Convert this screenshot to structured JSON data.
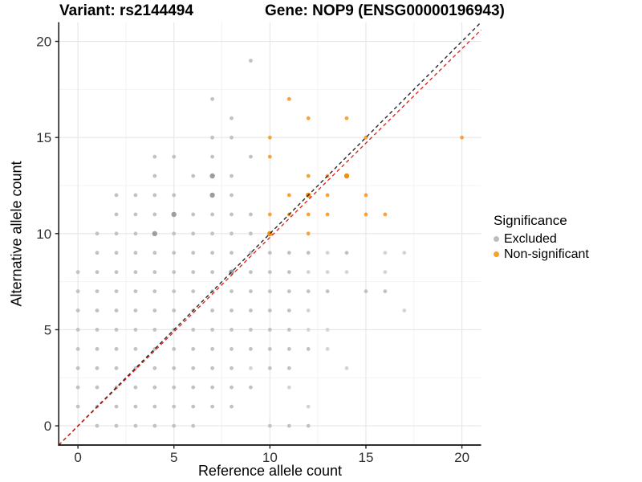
{
  "header": {
    "title_left": "Variant: rs2144494",
    "title_right": "Gene: NOP9 (ENSG00000196943)"
  },
  "chart_data": {
    "type": "scatter",
    "xlabel": "Reference allele count",
    "ylabel": "Alternative allele count",
    "xlim": [
      -1,
      21
    ],
    "ylim": [
      -1,
      21
    ],
    "x_ticks": [
      0,
      5,
      10,
      15,
      20
    ],
    "y_ticks": [
      0,
      5,
      10,
      15,
      20
    ],
    "minor_ticks": [
      2.5,
      7.5,
      12.5,
      17.5
    ],
    "grid": true,
    "major_grid_color": "#e6e6e6",
    "minor_grid_color": "#f2f2f2",
    "axis_color": "#111111",
    "tick_label_color": "#303030",
    "legend": {
      "title": "Significance",
      "position": "right",
      "items": [
        {
          "label": "Excluded",
          "color": "#BDBDBD"
        },
        {
          "label": "Non-significant",
          "color": "#F9A02A"
        }
      ]
    },
    "series": [
      {
        "name": "Excluded",
        "shade_colors": {
          "0": "#C2C2C2",
          "1": "#9D9D9D",
          "2": "#D4D4D4"
        },
        "points": [
          [
            9,
            19,
            0
          ],
          [
            7,
            17,
            0
          ],
          [
            8,
            16,
            0
          ],
          [
            7,
            15,
            0
          ],
          [
            8,
            15,
            0
          ],
          [
            4,
            14,
            0
          ],
          [
            5,
            14,
            0
          ],
          [
            7,
            14,
            0
          ],
          [
            9,
            14,
            0
          ],
          [
            4,
            13,
            0
          ],
          [
            6,
            13,
            0
          ],
          [
            7,
            13,
            1
          ],
          [
            8,
            13,
            0
          ],
          [
            2,
            12,
            0
          ],
          [
            3,
            12,
            0
          ],
          [
            4,
            12,
            0
          ],
          [
            5,
            12,
            0
          ],
          [
            7,
            12,
            1
          ],
          [
            8,
            12,
            0
          ],
          [
            2,
            11,
            0
          ],
          [
            3,
            11,
            0
          ],
          [
            4,
            11,
            0
          ],
          [
            5,
            11,
            1
          ],
          [
            6,
            11,
            0
          ],
          [
            7,
            11,
            0
          ],
          [
            8,
            11,
            0
          ],
          [
            9,
            11,
            0
          ],
          [
            1,
            10,
            0
          ],
          [
            2,
            10,
            0
          ],
          [
            3,
            10,
            0
          ],
          [
            4,
            10,
            1
          ],
          [
            5,
            10,
            0
          ],
          [
            6,
            10,
            0
          ],
          [
            7,
            10,
            0
          ],
          [
            8,
            10,
            0
          ],
          [
            9,
            10,
            0
          ],
          [
            1,
            9,
            0
          ],
          [
            2,
            9,
            0
          ],
          [
            3,
            9,
            0
          ],
          [
            4,
            9,
            0
          ],
          [
            5,
            9,
            0
          ],
          [
            6,
            9,
            0
          ],
          [
            7,
            9,
            0
          ],
          [
            8,
            9,
            0
          ],
          [
            9,
            9,
            0
          ],
          [
            10,
            9,
            0
          ],
          [
            11,
            9,
            0
          ],
          [
            12,
            9,
            0
          ],
          [
            13,
            9,
            2
          ],
          [
            14,
            9,
            0
          ],
          [
            16,
            9,
            2
          ],
          [
            17,
            9,
            2
          ],
          [
            0,
            8,
            0
          ],
          [
            1,
            8,
            0
          ],
          [
            2,
            8,
            0
          ],
          [
            3,
            8,
            0
          ],
          [
            4,
            8,
            0
          ],
          [
            5,
            8,
            0
          ],
          [
            6,
            8,
            0
          ],
          [
            7,
            8,
            0
          ],
          [
            8,
            8,
            1
          ],
          [
            9,
            8,
            0
          ],
          [
            10,
            8,
            0
          ],
          [
            11,
            8,
            0
          ],
          [
            12,
            8,
            2
          ],
          [
            13,
            8,
            2
          ],
          [
            14,
            8,
            2
          ],
          [
            16,
            8,
            2
          ],
          [
            0,
            7,
            0
          ],
          [
            1,
            7,
            0
          ],
          [
            2,
            7,
            0
          ],
          [
            3,
            7,
            0
          ],
          [
            4,
            7,
            0
          ],
          [
            5,
            7,
            0
          ],
          [
            6,
            7,
            0
          ],
          [
            7,
            7,
            0
          ],
          [
            8,
            7,
            0
          ],
          [
            9,
            7,
            0
          ],
          [
            10,
            7,
            0
          ],
          [
            11,
            7,
            0
          ],
          [
            12,
            7,
            0
          ],
          [
            13,
            7,
            0
          ],
          [
            15,
            7,
            0
          ],
          [
            16,
            7,
            0
          ],
          [
            0,
            6,
            0
          ],
          [
            1,
            6,
            0
          ],
          [
            2,
            6,
            0
          ],
          [
            3,
            6,
            0
          ],
          [
            4,
            6,
            0
          ],
          [
            5,
            6,
            0
          ],
          [
            6,
            6,
            0
          ],
          [
            7,
            6,
            0
          ],
          [
            8,
            6,
            0
          ],
          [
            9,
            6,
            0
          ],
          [
            10,
            6,
            0
          ],
          [
            11,
            6,
            0
          ],
          [
            12,
            6,
            2
          ],
          [
            17,
            6,
            2
          ],
          [
            0,
            5,
            0
          ],
          [
            1,
            5,
            0
          ],
          [
            2,
            5,
            0
          ],
          [
            3,
            5,
            0
          ],
          [
            4,
            5,
            0
          ],
          [
            5,
            5,
            0
          ],
          [
            6,
            5,
            0
          ],
          [
            7,
            5,
            0
          ],
          [
            8,
            5,
            0
          ],
          [
            9,
            5,
            0
          ],
          [
            10,
            5,
            0
          ],
          [
            11,
            5,
            0
          ],
          [
            12,
            5,
            2
          ],
          [
            13,
            5,
            2
          ],
          [
            0,
            4,
            0
          ],
          [
            1,
            4,
            0
          ],
          [
            2,
            4,
            0
          ],
          [
            3,
            4,
            0
          ],
          [
            4,
            4,
            0
          ],
          [
            5,
            4,
            0
          ],
          [
            6,
            4,
            0
          ],
          [
            7,
            4,
            0
          ],
          [
            8,
            4,
            0
          ],
          [
            9,
            4,
            0
          ],
          [
            10,
            4,
            0
          ],
          [
            11,
            4,
            0
          ],
          [
            12,
            4,
            0
          ],
          [
            13,
            4,
            2
          ],
          [
            0,
            3,
            0
          ],
          [
            1,
            3,
            0
          ],
          [
            2,
            3,
            0
          ],
          [
            3,
            3,
            0
          ],
          [
            4,
            3,
            0
          ],
          [
            5,
            3,
            0
          ],
          [
            6,
            3,
            0
          ],
          [
            7,
            3,
            0
          ],
          [
            8,
            3,
            0
          ],
          [
            9,
            3,
            2
          ],
          [
            10,
            3,
            0
          ],
          [
            11,
            3,
            0
          ],
          [
            14,
            3,
            2
          ],
          [
            0,
            2,
            0
          ],
          [
            1,
            2,
            0
          ],
          [
            2,
            2,
            0
          ],
          [
            3,
            2,
            0
          ],
          [
            4,
            2,
            0
          ],
          [
            5,
            2,
            0
          ],
          [
            6,
            2,
            0
          ],
          [
            7,
            2,
            0
          ],
          [
            8,
            2,
            0
          ],
          [
            9,
            2,
            0
          ],
          [
            11,
            2,
            2
          ],
          [
            0,
            1,
            0
          ],
          [
            1,
            1,
            0
          ],
          [
            2,
            1,
            0
          ],
          [
            3,
            1,
            0
          ],
          [
            4,
            1,
            0
          ],
          [
            5,
            1,
            0
          ],
          [
            6,
            1,
            0
          ],
          [
            7,
            1,
            0
          ],
          [
            8,
            1,
            0
          ],
          [
            12,
            1,
            2
          ],
          [
            1,
            0,
            0
          ],
          [
            2,
            0,
            0
          ],
          [
            3,
            0,
            0
          ],
          [
            4,
            0,
            0
          ],
          [
            5,
            0,
            0
          ],
          [
            6,
            0,
            0
          ],
          [
            10,
            0,
            0
          ],
          [
            11,
            0,
            0
          ],
          [
            12,
            0,
            0
          ]
        ]
      },
      {
        "name": "Non-significant",
        "shade_colors": {
          "0": "#F9A13A",
          "1": "#EE8E12",
          "2": "#F9A13A"
        },
        "points": [
          [
            11,
            17,
            0
          ],
          [
            12,
            16,
            0
          ],
          [
            14,
            16,
            0
          ],
          [
            10,
            15,
            0
          ],
          [
            15,
            15,
            0
          ],
          [
            20,
            15,
            0
          ],
          [
            10,
            14,
            0
          ],
          [
            12,
            13,
            0
          ],
          [
            13,
            13,
            0
          ],
          [
            14,
            13,
            1
          ],
          [
            11,
            12,
            0
          ],
          [
            12,
            12,
            1
          ],
          [
            13,
            12,
            0
          ],
          [
            15,
            12,
            0
          ],
          [
            10,
            11,
            0
          ],
          [
            11,
            11,
            0
          ],
          [
            12,
            11,
            0
          ],
          [
            13,
            11,
            0
          ],
          [
            15,
            11,
            0
          ],
          [
            16,
            11,
            0
          ],
          [
            10,
            10,
            1
          ],
          [
            12,
            10,
            0
          ]
        ]
      }
    ],
    "lines": [
      {
        "name": "identity-line",
        "color": "#1A1A1A",
        "dashed": true,
        "x1": -1,
        "y1": -1,
        "x2": 21,
        "y2": 21
      },
      {
        "name": "fit-line",
        "color": "#E21B17",
        "dashed": true,
        "x1": -1,
        "y1": -1,
        "x2": 21,
        "y2": 20.6
      }
    ]
  }
}
